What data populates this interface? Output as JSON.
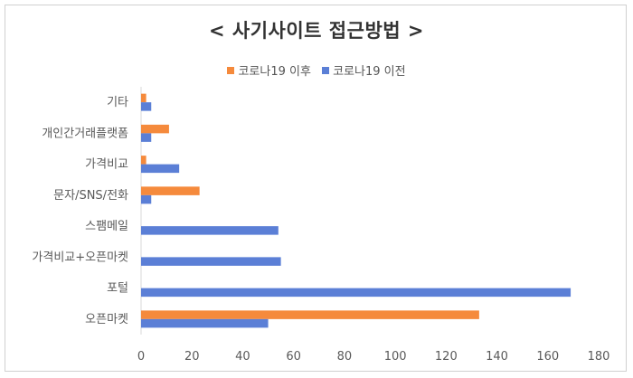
{
  "chart_data": {
    "type": "bar",
    "orientation": "horizontal",
    "title": "< 사기사이트 접근방법 >",
    "categories": [
      "기타",
      "개인간거래플랫폼",
      "가격비교",
      "문자/SNS/전화",
      "스팸메일",
      "가격비교+오픈마켓",
      "포털",
      "오픈마켓"
    ],
    "series": [
      {
        "name": "코로나19 이후",
        "color": "#f58a3c",
        "values": [
          2,
          11,
          2,
          23,
          0,
          0,
          0,
          133
        ]
      },
      {
        "name": "코로나19 이전",
        "color": "#5b7fd6",
        "values": [
          4,
          4,
          15,
          4,
          54,
          55,
          169,
          50
        ]
      }
    ],
    "legend": [
      "코로나19 이후",
      "코로나19 이전"
    ],
    "legend_position": "top",
    "xlim": [
      0,
      180
    ],
    "x_ticks": [
      "0",
      "20",
      "40",
      "60",
      "80",
      "100",
      "120",
      "140",
      "160",
      "180"
    ],
    "grid": false
  }
}
